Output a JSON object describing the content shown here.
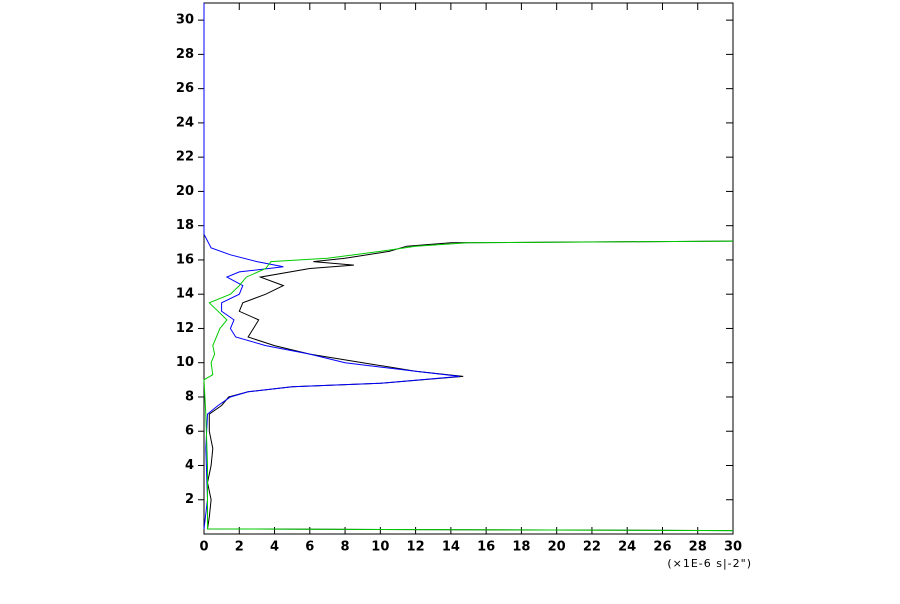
{
  "chart_data": {
    "type": "line",
    "x_label": "(×1E-6 s|-2\")",
    "xlim": [
      0,
      30
    ],
    "xticks": [
      0,
      2,
      4,
      6,
      8,
      10,
      12,
      14,
      16,
      18,
      20,
      22,
      24,
      26,
      28,
      30
    ],
    "ylim": [
      0,
      31
    ],
    "yticks": [
      2,
      4,
      6,
      8,
      10,
      12,
      14,
      16,
      18,
      20,
      22,
      24,
      26,
      28,
      30
    ],
    "series": [
      {
        "color": "#000000",
        "x": [
          30,
          0.2,
          0.3,
          0.4,
          0.2,
          0.4,
          0.5,
          0.3,
          0.3,
          1,
          1.4,
          2.5,
          5,
          10,
          14.7,
          12,
          9,
          6,
          4,
          2.5,
          2.8,
          3.1,
          2,
          2.2,
          3.5,
          4.5,
          3.2,
          6,
          8.5,
          6.2,
          8,
          10.5,
          11.5,
          14,
          30
        ],
        "y": [
          0.2,
          0.3,
          1,
          2,
          3,
          4,
          5,
          6,
          7,
          7.5,
          8,
          8.3,
          8.6,
          8.8,
          9.2,
          9.5,
          10,
          10.5,
          11,
          11.5,
          12,
          12.5,
          13,
          13.5,
          14,
          14.5,
          15,
          15.5,
          15.7,
          15.9,
          16.1,
          16.5,
          16.8,
          17,
          17.1
        ]
      },
      {
        "color": "#0000ff",
        "x": [
          0,
          0.2,
          0.1,
          0.2,
          0.8,
          1.5,
          2.5,
          5,
          10,
          14.5,
          12,
          8,
          6,
          3.5,
          1.8,
          1.5,
          1.7,
          1,
          1,
          2,
          2.2,
          1.3,
          2,
          4.5,
          3,
          1.5,
          0.4,
          0,
          0,
          0
        ],
        "y": [
          0.3,
          2,
          5,
          7,
          7.5,
          8,
          8.3,
          8.6,
          8.8,
          9.2,
          9.5,
          10,
          10.5,
          11,
          11.5,
          12,
          12.5,
          13,
          13.5,
          14,
          14.5,
          15,
          15.3,
          15.6,
          15.9,
          16.3,
          16.7,
          17.5,
          27,
          31
        ]
      },
      {
        "color": "#00cc00",
        "x": [
          30,
          0.2,
          0.2,
          0.1,
          0,
          0.5,
          0.4,
          0.6,
          0.5,
          0.9,
          1.3,
          0.8,
          0.3,
          1.5,
          2,
          2.4,
          3.5,
          3.8,
          7,
          10,
          12,
          15,
          30
        ],
        "y": [
          0.2,
          0.3,
          4,
          7,
          9,
          9.3,
          10,
          10.5,
          11,
          12,
          12.5,
          13,
          13.5,
          14,
          14.5,
          15,
          15.5,
          15.9,
          16.1,
          16.5,
          16.8,
          17,
          17.1
        ]
      }
    ]
  }
}
